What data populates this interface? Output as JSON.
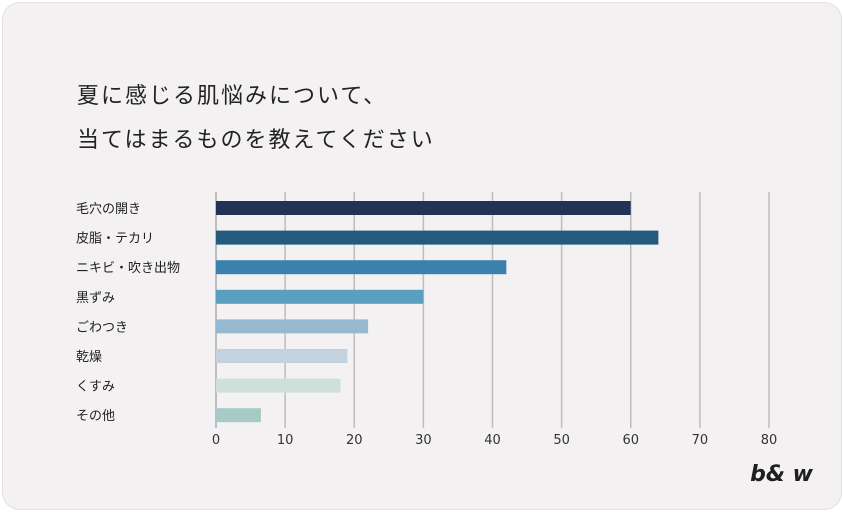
{
  "title": {
    "line1": "夏に感じる肌悩みについて、",
    "line2": "当てはまるものを教えてください"
  },
  "logo": "b& w",
  "chart_data": {
    "type": "bar",
    "orientation": "horizontal",
    "categories": [
      "毛穴の開き",
      "皮脂・テカリ",
      "ニキビ・吹き出物",
      "黒ずみ",
      "ごわつき",
      "乾燥",
      "くすみ",
      "その他"
    ],
    "values": [
      60,
      64,
      42,
      30,
      22,
      19,
      18,
      6.5
    ],
    "colors": [
      "#213457",
      "#245a7b",
      "#3a81ad",
      "#5a9fc0",
      "#96b9d0",
      "#c3d2de",
      "#cfdfdc",
      "#a7cac7"
    ],
    "xlim": [
      0,
      80
    ],
    "xticks": [
      "0",
      "10",
      "20",
      "30",
      "40",
      "50",
      "60",
      "70",
      "80"
    ],
    "grid": true,
    "gridColor": "#bdbdbd"
  }
}
